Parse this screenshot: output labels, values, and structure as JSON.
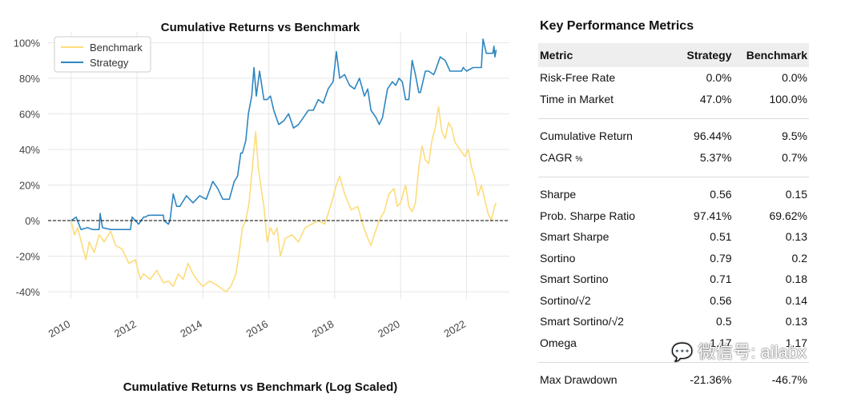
{
  "chart_data": {
    "type": "line",
    "title": "Cumulative Returns vs Benchmark",
    "xlabel": "",
    "ylabel": "",
    "x_ticks": [
      "2010",
      "2012",
      "2014",
      "2016",
      "2018",
      "2020",
      "2022"
    ],
    "y_ticks": [
      "100%",
      "80%",
      "60%",
      "40%",
      "20%",
      "0%",
      "-20%",
      "-40%"
    ],
    "ylim": [
      -44,
      106
    ],
    "xlim": [
      2009.3,
      2023.3
    ],
    "legend": [
      "Benchmark",
      "Strategy"
    ],
    "legend_position": "top-left",
    "grid": true,
    "zero_line": true,
    "series": [
      {
        "name": "Benchmark",
        "color": "#fddc7a",
        "points": [
          [
            2010.0,
            0
          ],
          [
            2010.1,
            -8
          ],
          [
            2010.2,
            -4
          ],
          [
            2010.35,
            -15
          ],
          [
            2010.45,
            -22
          ],
          [
            2010.55,
            -12
          ],
          [
            2010.7,
            -18
          ],
          [
            2010.85,
            -8
          ],
          [
            2011.0,
            -12
          ],
          [
            2011.2,
            -6
          ],
          [
            2011.35,
            -14
          ],
          [
            2011.55,
            -16
          ],
          [
            2011.75,
            -24
          ],
          [
            2011.95,
            -22
          ],
          [
            2012.1,
            -33
          ],
          [
            2012.2,
            -30
          ],
          [
            2012.4,
            -33
          ],
          [
            2012.6,
            -28
          ],
          [
            2012.8,
            -35
          ],
          [
            2012.95,
            -34
          ],
          [
            2013.1,
            -37
          ],
          [
            2013.25,
            -30
          ],
          [
            2013.4,
            -33
          ],
          [
            2013.55,
            -24
          ],
          [
            2013.7,
            -30
          ],
          [
            2013.85,
            -34
          ],
          [
            2014.0,
            -37
          ],
          [
            2014.2,
            -34
          ],
          [
            2014.4,
            -36
          ],
          [
            2014.55,
            -38
          ],
          [
            2014.7,
            -40
          ],
          [
            2014.85,
            -37
          ],
          [
            2015.0,
            -30
          ],
          [
            2015.1,
            -18
          ],
          [
            2015.2,
            -4
          ],
          [
            2015.3,
            0
          ],
          [
            2015.4,
            10
          ],
          [
            2015.5,
            30
          ],
          [
            2015.6,
            50
          ],
          [
            2015.68,
            30
          ],
          [
            2015.75,
            20
          ],
          [
            2015.85,
            8
          ],
          [
            2015.95,
            -12
          ],
          [
            2016.05,
            -4
          ],
          [
            2016.15,
            -8
          ],
          [
            2016.25,
            -4
          ],
          [
            2016.35,
            -20
          ],
          [
            2016.5,
            -10
          ],
          [
            2016.7,
            -8
          ],
          [
            2016.9,
            -12
          ],
          [
            2017.1,
            -4
          ],
          [
            2017.3,
            -2
          ],
          [
            2017.5,
            0
          ],
          [
            2017.7,
            -2
          ],
          [
            2017.9,
            10
          ],
          [
            2018.05,
            20
          ],
          [
            2018.15,
            25
          ],
          [
            2018.3,
            15
          ],
          [
            2018.5,
            6
          ],
          [
            2018.7,
            8
          ],
          [
            2018.85,
            -2
          ],
          [
            2019.0,
            -10
          ],
          [
            2019.1,
            -14
          ],
          [
            2019.2,
            -8
          ],
          [
            2019.35,
            0
          ],
          [
            2019.5,
            5
          ],
          [
            2019.65,
            15
          ],
          [
            2019.8,
            18
          ],
          [
            2019.9,
            8
          ],
          [
            2020.0,
            10
          ],
          [
            2020.15,
            20
          ],
          [
            2020.25,
            8
          ],
          [
            2020.35,
            5
          ],
          [
            2020.45,
            10
          ],
          [
            2020.55,
            30
          ],
          [
            2020.65,
            42
          ],
          [
            2020.75,
            34
          ],
          [
            2020.85,
            32
          ],
          [
            2020.95,
            45
          ],
          [
            2021.05,
            52
          ],
          [
            2021.15,
            64
          ],
          [
            2021.25,
            50
          ],
          [
            2021.35,
            46
          ],
          [
            2021.45,
            55
          ],
          [
            2021.55,
            52
          ],
          [
            2021.65,
            44
          ],
          [
            2021.8,
            40
          ],
          [
            2021.95,
            36
          ],
          [
            2022.05,
            40
          ],
          [
            2022.15,
            30
          ],
          [
            2022.25,
            24
          ],
          [
            2022.35,
            14
          ],
          [
            2022.45,
            20
          ],
          [
            2022.55,
            12
          ],
          [
            2022.65,
            4
          ],
          [
            2022.75,
            0
          ],
          [
            2022.85,
            8
          ],
          [
            2022.9,
            10
          ]
        ]
      },
      {
        "name": "Strategy",
        "color": "#2e86c1",
        "points": [
          [
            2010.0,
            0
          ],
          [
            2010.15,
            2
          ],
          [
            2010.3,
            -5
          ],
          [
            2010.5,
            -4
          ],
          [
            2010.65,
            -5
          ],
          [
            2010.85,
            -5
          ],
          [
            2010.88,
            4
          ],
          [
            2010.95,
            -4
          ],
          [
            2011.2,
            -5
          ],
          [
            2011.5,
            -5
          ],
          [
            2011.8,
            -5
          ],
          [
            2011.85,
            2
          ],
          [
            2012.05,
            -2
          ],
          [
            2012.2,
            2
          ],
          [
            2012.25,
            2
          ],
          [
            2012.35,
            3
          ],
          [
            2012.55,
            3
          ],
          [
            2012.8,
            3
          ],
          [
            2012.82,
            0
          ],
          [
            2012.95,
            -2
          ],
          [
            2013.0,
            0
          ],
          [
            2013.1,
            15
          ],
          [
            2013.2,
            8
          ],
          [
            2013.3,
            8
          ],
          [
            2013.5,
            14
          ],
          [
            2013.7,
            10
          ],
          [
            2013.9,
            14
          ],
          [
            2014.1,
            12
          ],
          [
            2014.3,
            22
          ],
          [
            2014.45,
            18
          ],
          [
            2014.6,
            12
          ],
          [
            2014.8,
            12
          ],
          [
            2014.95,
            22
          ],
          [
            2015.05,
            25
          ],
          [
            2015.15,
            38
          ],
          [
            2015.2,
            38
          ],
          [
            2015.3,
            45
          ],
          [
            2015.38,
            60
          ],
          [
            2015.48,
            70
          ],
          [
            2015.55,
            86
          ],
          [
            2015.62,
            70
          ],
          [
            2015.72,
            84
          ],
          [
            2015.85,
            68
          ],
          [
            2015.95,
            68
          ],
          [
            2016.05,
            70
          ],
          [
            2016.15,
            62
          ],
          [
            2016.3,
            54
          ],
          [
            2016.45,
            56
          ],
          [
            2016.6,
            60
          ],
          [
            2016.75,
            52
          ],
          [
            2016.9,
            54
          ],
          [
            2017.05,
            58
          ],
          [
            2017.2,
            62
          ],
          [
            2017.35,
            62
          ],
          [
            2017.5,
            68
          ],
          [
            2017.65,
            66
          ],
          [
            2017.8,
            74
          ],
          [
            2017.95,
            78
          ],
          [
            2018.05,
            95
          ],
          [
            2018.15,
            80
          ],
          [
            2018.3,
            82
          ],
          [
            2018.45,
            76
          ],
          [
            2018.6,
            74
          ],
          [
            2018.75,
            80
          ],
          [
            2018.9,
            70
          ],
          [
            2019.0,
            74
          ],
          [
            2019.1,
            62
          ],
          [
            2019.25,
            58
          ],
          [
            2019.35,
            54
          ],
          [
            2019.45,
            58
          ],
          [
            2019.6,
            74
          ],
          [
            2019.75,
            78
          ],
          [
            2019.85,
            76
          ],
          [
            2019.95,
            80
          ],
          [
            2020.05,
            78
          ],
          [
            2020.15,
            68
          ],
          [
            2020.25,
            68
          ],
          [
            2020.35,
            90
          ],
          [
            2020.45,
            82
          ],
          [
            2020.55,
            72
          ],
          [
            2020.6,
            72
          ],
          [
            2020.75,
            84
          ],
          [
            2020.85,
            84
          ],
          [
            2021.0,
            82
          ],
          [
            2021.05,
            84
          ],
          [
            2021.2,
            92
          ],
          [
            2021.35,
            90
          ],
          [
            2021.5,
            84
          ],
          [
            2021.7,
            84
          ],
          [
            2021.85,
            84
          ],
          [
            2021.9,
            86
          ],
          [
            2022.0,
            84
          ],
          [
            2022.2,
            86
          ],
          [
            2022.35,
            86
          ],
          [
            2022.45,
            86
          ],
          [
            2022.5,
            102
          ],
          [
            2022.6,
            94
          ],
          [
            2022.8,
            94
          ],
          [
            2022.83,
            98
          ],
          [
            2022.86,
            92
          ],
          [
            2022.9,
            96
          ]
        ]
      }
    ]
  },
  "log_chart": {
    "title": "Cumulative Returns vs Benchmark (Log Scaled)"
  },
  "metrics": {
    "title": "Key Performance Metrics",
    "columns": [
      "Metric",
      "Strategy",
      "Benchmark"
    ],
    "groups": [
      [
        {
          "label": "Risk-Free Rate",
          "strategy": "0.0%",
          "benchmark": "0.0%"
        },
        {
          "label": "Time in Market",
          "strategy": "47.0%",
          "benchmark": "100.0%"
        }
      ],
      [
        {
          "label": "Cumulative Return",
          "strategy": "96.44%",
          "benchmark": "9.5%"
        },
        {
          "label": "CAGR",
          "suffix": "%",
          "strategy": "5.37%",
          "benchmark": "0.7%"
        }
      ],
      [
        {
          "label": "Sharpe",
          "strategy": "0.56",
          "benchmark": "0.15"
        },
        {
          "label": "Prob. Sharpe Ratio",
          "strategy": "97.41%",
          "benchmark": "69.62%"
        },
        {
          "label": "Smart Sharpe",
          "strategy": "0.51",
          "benchmark": "0.13"
        },
        {
          "label": "Sortino",
          "strategy": "0.79",
          "benchmark": "0.2"
        },
        {
          "label": "Smart Sortino",
          "strategy": "0.71",
          "benchmark": "0.18"
        },
        {
          "label": "Sortino/√2",
          "strategy": "0.56",
          "benchmark": "0.14"
        },
        {
          "label": "Smart Sortino/√2",
          "strategy": "0.5",
          "benchmark": "0.13"
        },
        {
          "label": "Omega",
          "strategy": "1.17",
          "benchmark": "1.17"
        }
      ],
      [
        {
          "label": "Max Drawdown",
          "strategy": "-21.36%",
          "benchmark": "-46.7%"
        }
      ]
    ]
  },
  "watermark": {
    "icon": "wechat-icon",
    "text": "微信号: ailabx"
  }
}
